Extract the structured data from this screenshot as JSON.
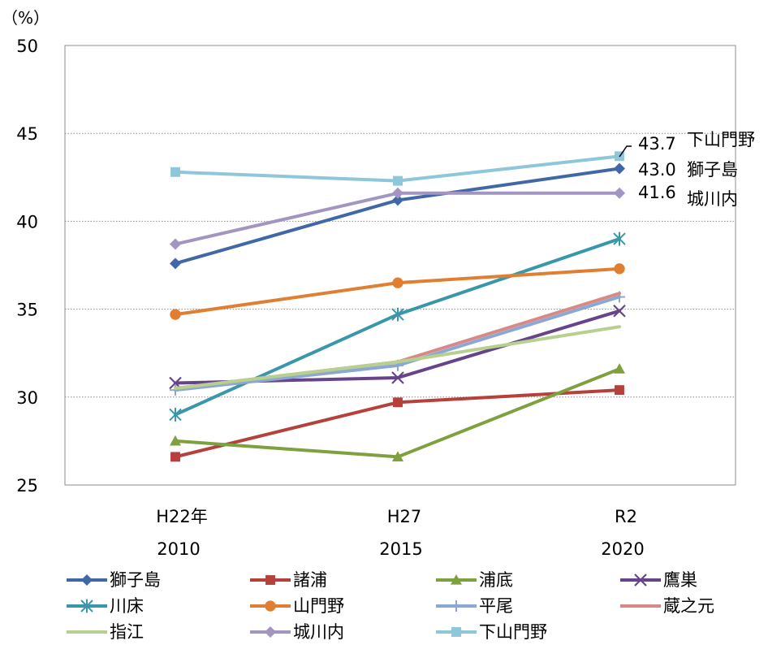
{
  "chart_data": {
    "type": "line",
    "unit_label": "（%）",
    "ylim": [
      25,
      50
    ],
    "yticks": [
      25,
      30,
      35,
      40,
      45,
      50
    ],
    "grid": true,
    "legend_position": "bottom",
    "categories": [
      {
        "label": "H22年",
        "year": "2010"
      },
      {
        "label": "H27",
        "year": "2015"
      },
      {
        "label": "R2",
        "year": "2020"
      }
    ],
    "series": [
      {
        "name": "獅子島",
        "color": "#4068a6",
        "marker": "diamond",
        "values": [
          37.6,
          41.2,
          43.0
        ]
      },
      {
        "name": "諸浦",
        "color": "#b6403c",
        "marker": "square",
        "values": [
          26.6,
          29.7,
          30.4
        ]
      },
      {
        "name": "浦底",
        "color": "#7ea03e",
        "marker": "triangle",
        "values": [
          27.5,
          26.6,
          31.6
        ]
      },
      {
        "name": "鷹巣",
        "color": "#66448a",
        "marker": "x",
        "values": [
          30.8,
          31.1,
          34.9
        ]
      },
      {
        "name": "川床",
        "color": "#3a97a9",
        "marker": "star",
        "values": [
          29.0,
          34.7,
          39.0
        ]
      },
      {
        "name": "山門野",
        "color": "#e07e32",
        "marker": "circle",
        "values": [
          34.7,
          36.5,
          37.3
        ]
      },
      {
        "name": "平尾",
        "color": "#8aa7d6",
        "marker": "plus",
        "values": [
          30.4,
          31.8,
          35.7
        ]
      },
      {
        "name": "蔵之元",
        "color": "#d78a85",
        "marker": "none",
        "values": [
          30.5,
          32.0,
          35.9
        ]
      },
      {
        "name": "指江",
        "color": "#b8d08d",
        "marker": "none",
        "values": [
          30.5,
          32.0,
          34.0
        ]
      },
      {
        "name": "城川内",
        "color": "#a295c2",
        "marker": "diamond",
        "values": [
          38.7,
          41.6,
          41.6
        ]
      },
      {
        "name": "下山門野",
        "color": "#8ec6da",
        "marker": "square",
        "values": [
          42.8,
          42.3,
          43.7
        ]
      }
    ],
    "annotations": [
      {
        "value": "43.7",
        "name": "下山門野"
      },
      {
        "value": "43.0",
        "name": "獅子島"
      },
      {
        "value": "41.6",
        "name": "城川内"
      }
    ]
  }
}
